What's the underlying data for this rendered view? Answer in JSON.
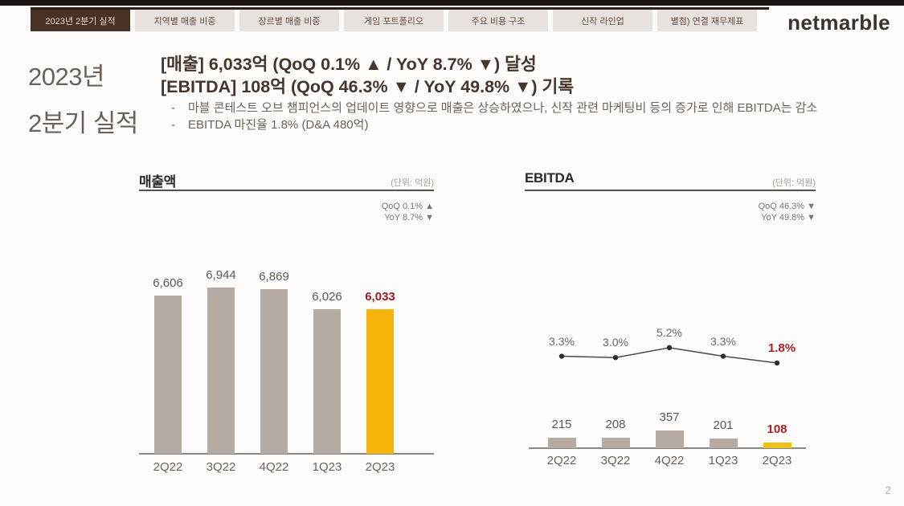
{
  "top_tabs": {
    "items": [
      {
        "label": "2023년 2분기 실적",
        "active": true
      },
      {
        "label": "지역별 매출 비중",
        "active": false
      },
      {
        "label": "장르별 매출 비중",
        "active": false
      },
      {
        "label": "게임 포트폴리오",
        "active": false
      },
      {
        "label": "주요 비용 구조",
        "active": false
      },
      {
        "label": "신작 라인업",
        "active": false
      },
      {
        "label": "별첨) 연결 재무제표",
        "active": false
      }
    ],
    "logo": "netmarble"
  },
  "header": {
    "title_line1": "2023년",
    "title_line2": "2분기 실적",
    "headline1": "[매출] 6,033억 (QoQ 0.1% ▲ / YoY 8.7% ▼) 달성",
    "headline2": "[EBITDA] 108억 (QoQ 46.3% ▼ / YoY 49.8% ▼) 기록",
    "bullet_dash": "-",
    "bullet1": "마블 콘테스트 오브 챔피언스의 업데이트 영향으로 매출은 상승하였으나, 신작 관련 마케팅비 등의 증가로 인해 EBITDA는 감소",
    "bullet2": "EBITDA 마진율 1.8% (D&A 480억)"
  },
  "chart_data": [
    {
      "type": "bar",
      "id": "revenue",
      "title": "매출액",
      "unit_label": "(단위: 억원)",
      "qoq_label": "QoQ 0.1% ▲",
      "yoy_label": "YoY 8.7% ▼",
      "categories": [
        "2Q22",
        "3Q22",
        "4Q22",
        "1Q23",
        "2Q23"
      ],
      "values": [
        6606,
        6944,
        6869,
        6026,
        6033
      ],
      "value_labels": [
        "6,606",
        "6,944",
        "6,869",
        "6,026",
        "6,033"
      ],
      "highlight_index": 4,
      "bar_color": "#b5aba3",
      "highlight_bar_color": "#f6b40a",
      "highlight_text_color": "#9e1b22",
      "ylim": [
        0,
        6944
      ],
      "grid": false,
      "legend": "none"
    },
    {
      "type": "bar+line",
      "id": "ebitda",
      "title": "EBITDA",
      "unit_label": "(단위: 억원)",
      "qoq_label": "QoQ 46.3% ▼",
      "yoy_label": "YoY 49.8% ▼",
      "categories": [
        "2Q22",
        "3Q22",
        "4Q22",
        "1Q23",
        "2Q23"
      ],
      "series": [
        {
          "name": "EBITDA",
          "type": "bar",
          "values": [
            215,
            208,
            357,
            201,
            108
          ],
          "value_labels": [
            "215",
            "208",
            "357",
            "201",
            "108"
          ]
        },
        {
          "name": "EBITDA margin",
          "type": "line",
          "values": [
            3.3,
            3.0,
            5.2,
            3.3,
            1.8
          ],
          "value_labels": [
            "3.3%",
            "3.0%",
            "5.2%",
            "3.3%",
            "1.8%"
          ]
        }
      ],
      "highlight_index": 4,
      "bar_color": "#b5aba3",
      "highlight_bar_color": "#eec11c",
      "highlight_text_color": "#a82028",
      "line_color": "#4c4c4c",
      "marker_color": "#2e2e2e",
      "grid": false,
      "legend": "none"
    }
  ],
  "footer": {
    "page_number": "2"
  }
}
